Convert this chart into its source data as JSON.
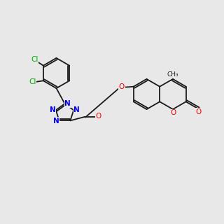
{
  "bg": "#e8e8e8",
  "bc": "#1a1a1a",
  "clc": "#00aa00",
  "nc": "#0000ee",
  "oc": "#ee0000"
}
